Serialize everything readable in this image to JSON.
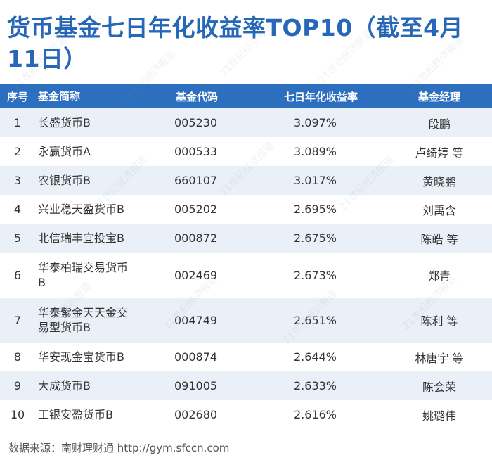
{
  "title": "货币基金七日年化收益率TOP10（截至4月11日）",
  "table": {
    "headers": [
      "序号",
      "基金简称",
      "基金代码",
      "七日年化收益率",
      "基金经理"
    ],
    "rows": [
      {
        "rank": "1",
        "name": "长盛货币B",
        "code": "005230",
        "yield": "3.097%",
        "manager": "段鹏"
      },
      {
        "rank": "2",
        "name": "永赢货币A",
        "code": "000533",
        "yield": "3.089%",
        "manager": "卢绮婷 等"
      },
      {
        "rank": "3",
        "name": "农银货币B",
        "code": "660107",
        "yield": "3.017%",
        "manager": "黄晓鹏"
      },
      {
        "rank": "4",
        "name": "兴业稳天盈货币B",
        "code": "005202",
        "yield": "2.695%",
        "manager": "刘禹含"
      },
      {
        "rank": "5",
        "name": "北信瑞丰宜投宝B",
        "code": "000872",
        "yield": "2.675%",
        "manager": "陈皓 等"
      },
      {
        "rank": "6",
        "name": "华泰柏瑞交易货币B",
        "code": "002469",
        "yield": "2.673%",
        "manager": "郑青"
      },
      {
        "rank": "7",
        "name": "华泰紫金天天金交易型货币B",
        "code": "004749",
        "yield": "2.651%",
        "manager": "陈利 等"
      },
      {
        "rank": "8",
        "name": "华安现金宝货币B",
        "code": "000874",
        "yield": "2.644%",
        "manager": "林唐宇 等"
      },
      {
        "rank": "9",
        "name": "大成货币B",
        "code": "091005",
        "yield": "2.633%",
        "manager": "陈会荣"
      },
      {
        "rank": "10",
        "name": "工银安盈货币B",
        "code": "002680",
        "yield": "2.616%",
        "manager": "姚璐伟"
      }
    ]
  },
  "source": "数据来源：南财理财通 http://gym.sfccn.com",
  "watermark": "21世纪经济报道"
}
